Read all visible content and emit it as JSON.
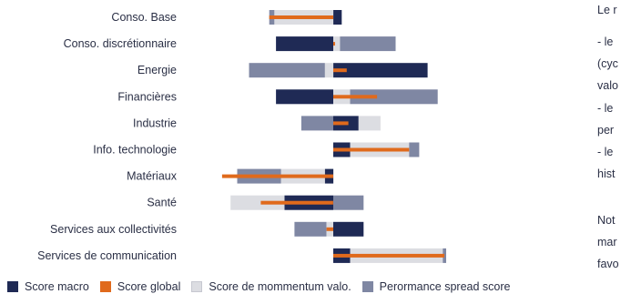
{
  "colors": {
    "macro": "#1f2a55",
    "global": "#e06a1c",
    "momentum": "#dcdde2",
    "spread": "#7f87a3"
  },
  "chart_data": {
    "type": "bar",
    "orientation": "horizontal",
    "stacked": "diverging",
    "grid": false,
    "legend_position": "bottom",
    "categories": [
      "Conso. Base",
      "Conso. discrétionnaire",
      "Energie",
      "Financières",
      "Industrie",
      "Info. technologie",
      "Matériaux",
      "Santé",
      "Services aux collectivités",
      "Services de communication"
    ],
    "series": [
      {
        "name": "Score macro",
        "values": [
          0.05,
          -0.34,
          0.56,
          -0.34,
          0.15,
          0.1,
          -0.05,
          -0.29,
          0.18,
          0.1
        ]
      },
      {
        "name": "Score de mommentum valo.",
        "values": [
          -0.35,
          0.04,
          -0.05,
          0.1,
          0.13,
          0.35,
          -0.26,
          -0.32,
          -0.04,
          0.55
        ]
      },
      {
        "name": "Perormance spread score",
        "values": [
          -0.03,
          0.33,
          -0.45,
          0.52,
          -0.19,
          0.06,
          -0.26,
          0.18,
          -0.19,
          0.02
        ]
      },
      {
        "name": "Score global",
        "values": [
          -0.38,
          0.01,
          0.08,
          0.26,
          0.09,
          0.45,
          -0.66,
          -0.43,
          -0.04,
          0.66
        ]
      }
    ]
  },
  "sidebar": {
    "lines": [
      "Le r",
      "- le",
      "(cyc",
      "valo",
      "- le",
      "per",
      "- le",
      "hist",
      "Not",
      "mar",
      "favo"
    ]
  }
}
